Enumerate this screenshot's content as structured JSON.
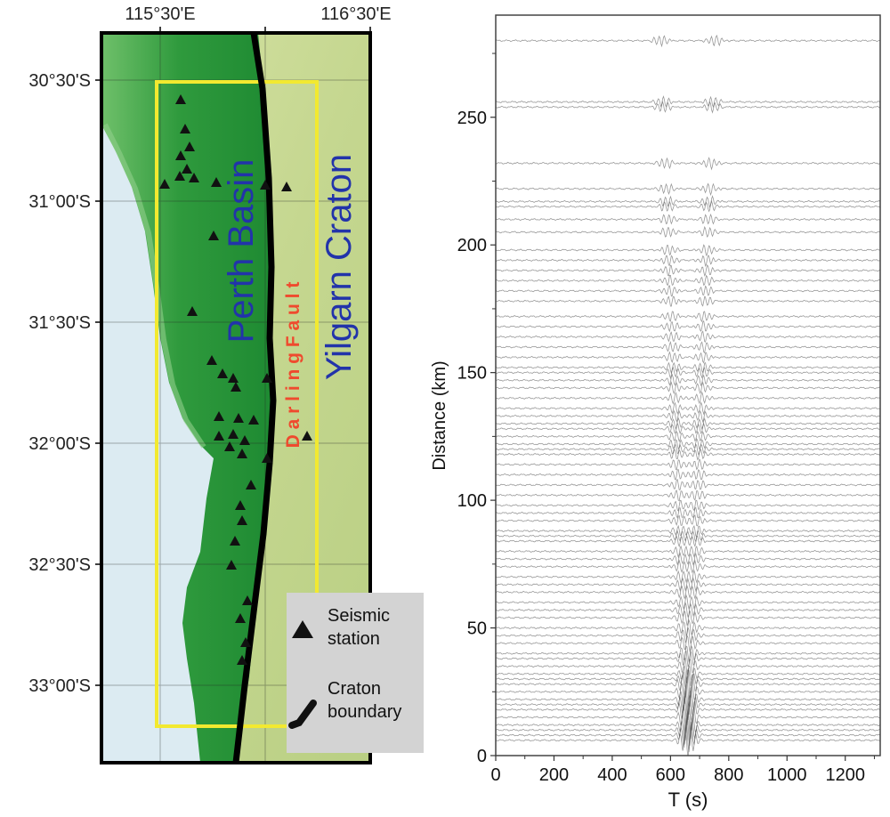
{
  "map": {
    "lon_labels": [
      "115°30'E",
      "116°30'E"
    ],
    "lat_labels": [
      "30°30'S",
      "31°00'S",
      "31°30'S",
      "32°00'S",
      "32°30'S",
      "33°00'S"
    ],
    "basin_label": "Perth Basin",
    "craton_label": "Yilgarn Craton",
    "fault_label": "D a r l i n g   F a u l t",
    "legend": {
      "station_line1": "Seismic",
      "station_line2": "station",
      "boundary_line1": "Craton",
      "boundary_line2": "boundary"
    },
    "colors": {
      "ocean": "#dcebf2",
      "basin_green": "#2e9a3c",
      "craton_tan": "#c9d99a",
      "study_box": "#f2e930",
      "boundary": "#000000",
      "fault_text": "#ef4a2e",
      "label_blue": "#2233aa"
    }
  },
  "chart_data": {
    "type": "line",
    "xlabel": "T (s)",
    "ylabel": "Distance (km)",
    "xlim": [
      0,
      1320
    ],
    "ylim": [
      0,
      290
    ],
    "x_ticks": [
      0,
      200,
      400,
      600,
      800,
      1000,
      1200
    ],
    "y_ticks": [
      0,
      50,
      100,
      150,
      200,
      250
    ],
    "x_tick_labels": [
      "0",
      "200",
      "400",
      "600",
      "800",
      "1000",
      "1200"
    ],
    "y_tick_labels": [
      "0",
      "50",
      "100",
      "150",
      "200",
      "250"
    ],
    "trace_color": "#444444",
    "wave_center_time": 660,
    "wave_velocity_kms": 3.0,
    "trace_distances_km": [
      280,
      256,
      254,
      232,
      222,
      217,
      215,
      210,
      205,
      198,
      194,
      190,
      186,
      182,
      178,
      172,
      168,
      164,
      160,
      156,
      152,
      150,
      147,
      144,
      140,
      136,
      133,
      130,
      128,
      125,
      122,
      120,
      118,
      114,
      110,
      106,
      102,
      98,
      95,
      92,
      88,
      86,
      84,
      80,
      77,
      74,
      70,
      67,
      64,
      60,
      57,
      54,
      50,
      47,
      44,
      40,
      38,
      35,
      32,
      30,
      28,
      25,
      22,
      20,
      18,
      15,
      12,
      10,
      8,
      6
    ]
  }
}
